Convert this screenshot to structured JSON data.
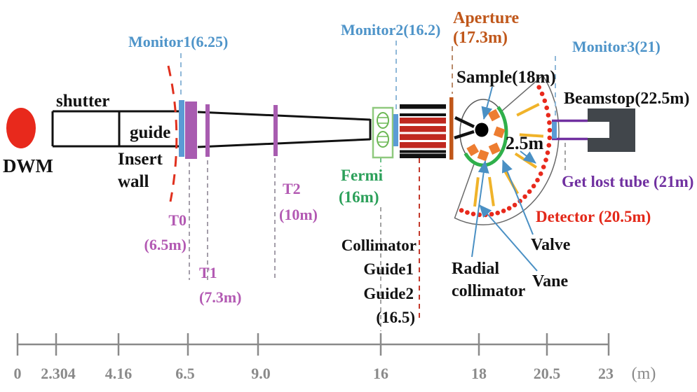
{
  "figure": {
    "source": {
      "label": "DWM"
    },
    "beamline": {
      "shutter": "shutter",
      "guide": "guide",
      "insert_wall": [
        "Insert",
        "wall"
      ],
      "monitor1": "Monitor1(6.25)",
      "t0": [
        "T0",
        "(6.5m)"
      ],
      "t1": [
        "T1",
        "(7.3m)"
      ],
      "t2": [
        "T2",
        "(10m)"
      ],
      "fermi": [
        "Fermi",
        "(16m)"
      ],
      "monitor2": "Monitor2(16.2)",
      "collimator_stack": [
        "Collimator",
        "Guide1",
        "Guide2",
        "(16.5)"
      ],
      "aperture": [
        "Aperture",
        "(17.3m)"
      ],
      "sample": "Sample(18m)",
      "radius": "2.5m",
      "radial_collimator": [
        "Radial",
        "collimator"
      ],
      "valve": "Valve",
      "vane": "Vane",
      "detector": "Detector (20.5m)",
      "get_lost_tube": "Get lost tube (21m)",
      "monitor3": "Monitor3(21)",
      "beamstop": "Beamstop(22.5m)"
    },
    "ruler": {
      "ticks": [
        "0",
        "2.304",
        "4.16",
        "6.5",
        "9.0",
        "16",
        "18",
        "20.5",
        "23"
      ],
      "unit": "(m)"
    },
    "colors": {
      "monitor_label": "#4e94c9",
      "monitor_bar": "#5b9bd5",
      "chopper_label": "#b35ab3",
      "chopper_bar": "#a85cb0",
      "fermi_green": "#2ca05a",
      "fermi_box": "#8fc97e",
      "aperture_orange": "#c0571a",
      "detector_red": "#e32819",
      "dot_red": "#e8291c",
      "stripe_red": "#c0281f",
      "tube_purple": "#7030a0",
      "vane_gold": "#f0b32a",
      "valve_green": "#2fb04b",
      "radial_orange": "#ed7d31",
      "arrow_blue": "#4a90c4",
      "ruler_gray": "#8a8a8a",
      "text_black": "#121212",
      "beamstop_gray": "#41464b",
      "source_red": "#e8291c"
    }
  }
}
